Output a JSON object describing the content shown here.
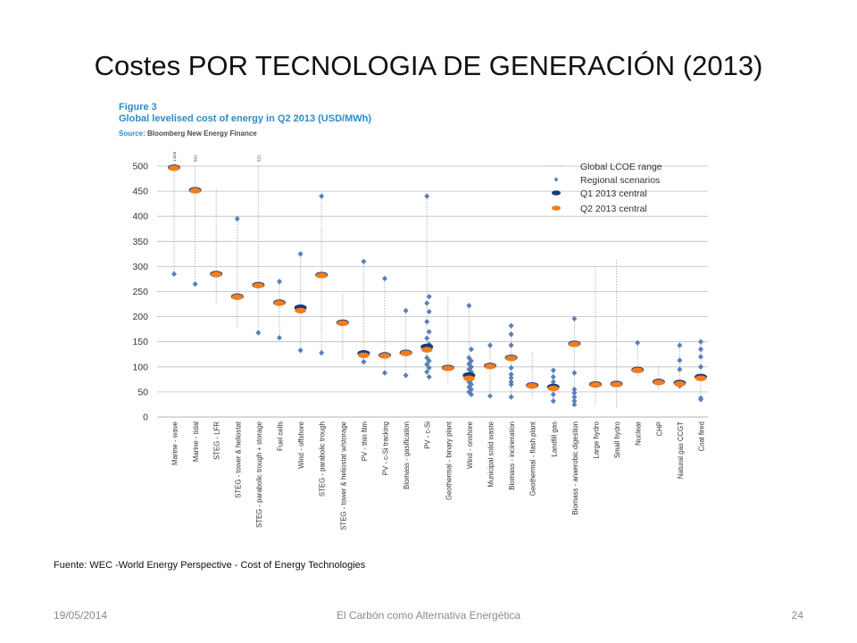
{
  "slide": {
    "title": "Costes POR TECNOLOGIA DE GENERACIÓN (2013)",
    "footnote": "Fuente: WEC -World Energy Perspective - Cost of Energy Technologies",
    "footer_date": "19/05/2014",
    "footer_center": "El Carbón como Alternativa Energética",
    "footer_page": "24"
  },
  "figure": {
    "label": "Figure 3",
    "title": "Global levelised cost of energy in Q2 2013 (USD/MWh)",
    "source_label": "Source:",
    "source_text": "Bloomberg New Energy Finance"
  },
  "chart_data": {
    "type": "scatter",
    "title": "Global levelised cost of energy in Q2 2013 (USD/MWh)",
    "ylim": [
      0,
      500
    ],
    "yticks": [
      0,
      50,
      100,
      150,
      200,
      250,
      300,
      350,
      400,
      450,
      500
    ],
    "grid": true,
    "legend_position": "top-right",
    "legend": [
      {
        "key": "range",
        "label": "Global LCOE range"
      },
      {
        "key": "regional",
        "label": "Regional scenarios"
      },
      {
        "key": "q1",
        "label": "Q1 2013 central"
      },
      {
        "key": "q2",
        "label": "Q2 2013 central"
      }
    ],
    "colors": {
      "range": "#b5b5b5",
      "regional": "#5b7fb8",
      "q1": "#163b78",
      "q2": "#f07d1f",
      "grid": "#bdbdbd"
    },
    "categories": [
      "Marine - wave",
      "Marine - tidal",
      "STEG - LFR",
      "STEG - tower & heliostat",
      "STEG - parabolic trough + storage",
      "Fuel cells",
      "Wind - offshore",
      "STEG - parabolic trough",
      "STEG - tower & heliostat w/storage",
      "PV - thin film",
      "PV - c-Si tracking",
      "Biomass - gasification",
      "PV - c-Si",
      "Geothermal - binary plant",
      "Wind - onshore",
      "Municipal solid waste",
      "Biomass - incineration",
      "Geothermal - flash plant",
      "Landfill gas",
      "Biomass - anaerobic digestion",
      "Large hydro",
      "Small hydro",
      "Nuclear",
      "CHP",
      "Natural gas CCGT",
      "Coal fired"
    ],
    "series": [
      {
        "category": "Marine - wave",
        "range": [
          285,
          500
        ],
        "q1": 497,
        "q2": 497,
        "regional": [
          285
        ],
        "offscale_label": "1,015"
      },
      {
        "category": "Marine - tidal",
        "range": [
          265,
          500
        ],
        "q1": 452,
        "q2": 452,
        "regional": [
          265
        ],
        "offscale_label": "591"
      },
      {
        "category": "STEG - LFR",
        "range": [
          228,
          455
        ],
        "q1": 285,
        "q2": 285,
        "regional": []
      },
      {
        "category": "STEG - tower & heliostat",
        "range": [
          178,
          395
        ],
        "q1": 240,
        "q2": 240,
        "regional": [
          395
        ]
      },
      {
        "category": "STEG - parabolic trough + storage",
        "range": [
          168,
          500
        ],
        "q1": 263,
        "q2": 263,
        "regional": [
          168
        ],
        "offscale_label": "521"
      },
      {
        "category": "Fuel cells",
        "range": [
          158,
          270
        ],
        "q1": 228,
        "q2": 228,
        "regional": [
          270,
          158
        ]
      },
      {
        "category": "Wind - offshore",
        "range": [
          133,
          325
        ],
        "q1": 218,
        "q2": 213,
        "regional": [
          325,
          133
        ]
      },
      {
        "category": "STEG - parabolic trough",
        "range": [
          128,
          440
        ],
        "q1": 283,
        "q2": 283,
        "regional": [
          440,
          128
        ]
      },
      {
        "category": "STEG - tower & heliostat w/storage",
        "range": [
          112,
          245
        ],
        "q1": 188,
        "q2": 188,
        "regional": []
      },
      {
        "category": "PV - thin film",
        "range": [
          110,
          310
        ],
        "q1": 127,
        "q2": 124,
        "regional": [
          310,
          110
        ]
      },
      {
        "category": "PV - c-Si tracking",
        "range": [
          88,
          276
        ],
        "q1": 123,
        "q2": 123,
        "regional": [
          276,
          88
        ]
      },
      {
        "category": "Biomass - gasification",
        "range": [
          83,
          212
        ],
        "q1": 128,
        "q2": 128,
        "regional": [
          212,
          83
        ]
      },
      {
        "category": "PV - c-Si",
        "range": [
          80,
          440
        ],
        "q1": 140,
        "q2": 135,
        "regional": [
          440,
          240,
          227,
          210,
          190,
          170,
          157,
          145,
          118,
          112,
          105,
          98,
          90,
          80
        ]
      },
      {
        "category": "Geothermal - binary plant",
        "range": [
          68,
          238
        ],
        "q1": 98,
        "q2": 98,
        "regional": []
      },
      {
        "category": "Wind - onshore",
        "range": [
          45,
          222
        ],
        "q1": 83,
        "q2": 78,
        "regional": [
          222,
          135,
          118,
          112,
          106,
          100,
          95,
          90,
          85,
          75,
          70,
          65,
          60,
          55,
          50,
          45
        ]
      },
      {
        "category": "Municipal solid waste",
        "range": [
          42,
          143
        ],
        "q1": 102,
        "q2": 102,
        "regional": [
          143,
          42
        ]
      },
      {
        "category": "Biomass - incineration",
        "range": [
          40,
          182
        ],
        "q1": 118,
        "q2": 118,
        "regional": [
          182,
          165,
          143,
          98,
          85,
          78,
          70,
          65,
          40
        ]
      },
      {
        "category": "Geothermal - flash plant",
        "range": [
          38,
          130
        ],
        "q1": 63,
        "q2": 63,
        "regional": []
      },
      {
        "category": "Landfill gas",
        "range": [
          32,
          93
        ],
        "q1": 60,
        "q2": 58,
        "regional": [
          93,
          80,
          70,
          45,
          32
        ]
      },
      {
        "category": "Biomass - anaerobic digestion",
        "range": [
          25,
          196
        ],
        "q1": 146,
        "q2": 146,
        "regional": [
          196,
          88,
          55,
          48,
          40,
          32,
          25
        ]
      },
      {
        "category": "Large hydro",
        "range": [
          22,
          300
        ],
        "q1": 65,
        "q2": 65,
        "regional": []
      },
      {
        "category": "Small hydro",
        "range": [
          18,
          313
        ],
        "q1": 66,
        "q2": 66,
        "regional": []
      },
      {
        "category": "Nuclear",
        "range": [
          78,
          148
        ],
        "q1": 94,
        "q2": 94,
        "regional": [
          148
        ]
      },
      {
        "category": "CHP",
        "range": [
          52,
          100
        ],
        "q1": 70,
        "q2": 70,
        "regional": []
      },
      {
        "category": "Natural gas CCGT",
        "range": [
          60,
          143
        ],
        "q1": 68,
        "q2": 67,
        "regional": [
          143,
          113,
          95,
          62
        ]
      },
      {
        "category": "Coal fired",
        "range": [
          35,
          150
        ],
        "q1": 80,
        "q2": 78,
        "regional": [
          150,
          135,
          120,
          100,
          38,
          35
        ]
      }
    ]
  }
}
